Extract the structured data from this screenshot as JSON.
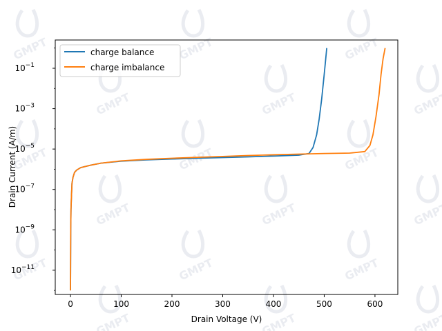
{
  "watermark_text": "GMPT",
  "chart_data": {
    "type": "line",
    "title": "",
    "xlabel": "Drain Voltage (V)",
    "ylabel": "Drain Current (A/m)",
    "xlim": [
      -30,
      645
    ],
    "ylim_log10": [
      -12.2,
      0.4
    ],
    "y_scale": "log",
    "x_ticks": [
      0,
      100,
      200,
      300,
      400,
      500,
      600
    ],
    "x_tick_labels": [
      "0",
      "100",
      "200",
      "300",
      "400",
      "500",
      "600"
    ],
    "y_ticks_exp": [
      -11,
      -9,
      -7,
      -5,
      -3,
      -1
    ],
    "y_tick_labels": [
      "10",
      "10",
      "10",
      "10",
      "10",
      "10"
    ],
    "y_tick_sups": [
      "−11",
      "−9",
      "−7",
      "−5",
      "−3",
      "−1"
    ],
    "grid": false,
    "legend_position": "top-left",
    "series": [
      {
        "name": "charge balance",
        "color": "#1f77b4",
        "x": [
          0,
          0.5,
          1,
          2,
          3,
          5,
          8,
          12,
          20,
          40,
          60,
          100,
          150,
          200,
          250,
          300,
          350,
          400,
          450,
          470,
          478,
          485,
          490,
          495,
          500,
          503,
          505
        ],
        "y": [
          1e-12,
          1e-09,
          1e-08,
          5e-08,
          2e-07,
          4e-07,
          7e-07,
          9e-07,
          1.2e-06,
          1.6e-06,
          2e-06,
          2.5e-06,
          2.9e-06,
          3.2e-06,
          3.5e-06,
          3.8e-06,
          4.1e-06,
          4.5e-06,
          5e-06,
          6e-06,
          1.2e-05,
          5e-05,
          0.0003,
          0.003,
          0.05,
          0.3,
          1
        ]
      },
      {
        "name": "charge imbalance",
        "color": "#ff7f0e",
        "x": [
          0,
          0.5,
          1,
          2,
          3,
          5,
          8,
          12,
          20,
          40,
          60,
          100,
          150,
          200,
          250,
          300,
          350,
          400,
          450,
          500,
          550,
          580,
          590,
          596,
          602,
          608,
          612,
          616,
          620
        ],
        "y": [
          1e-12,
          1e-09,
          1e-08,
          5e-08,
          2e-07,
          4e-07,
          7e-07,
          9e-07,
          1.2e-06,
          1.6e-06,
          2e-06,
          2.6e-06,
          3.1e-06,
          3.5e-06,
          3.9e-06,
          4.3e-06,
          4.8e-06,
          5.2e-06,
          5.6e-06,
          6e-06,
          6.3e-06,
          7.5e-06,
          1.5e-05,
          5e-05,
          0.0004,
          0.005,
          0.05,
          0.3,
          1
        ]
      }
    ]
  }
}
